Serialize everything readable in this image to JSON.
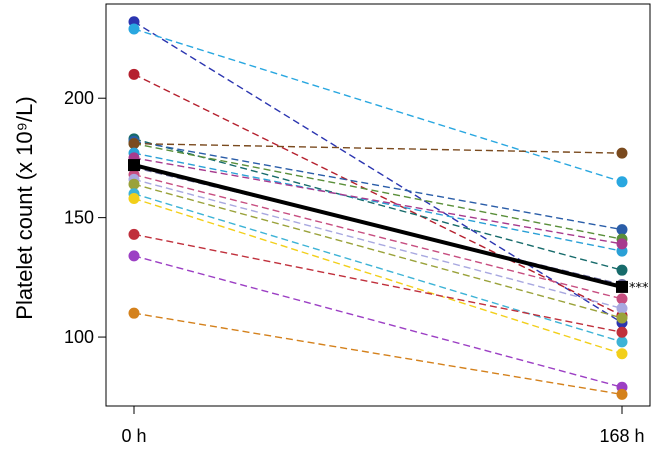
{
  "chart_data": {
    "type": "line",
    "x": [
      "0 h",
      "168 h"
    ],
    "ylabel": "Platelet count (x 10⁹/L)",
    "ylim": [
      77,
      234
    ],
    "yticks": [
      100,
      150,
      200
    ],
    "grid": false,
    "legend": "none",
    "series": [
      {
        "color": "#2b35b0",
        "values": [
          232,
          106
        ]
      },
      {
        "color": "#29a7e0",
        "values": [
          229,
          165
        ]
      },
      {
        "color": "#b5202e",
        "values": [
          210,
          109
        ]
      },
      {
        "color": "#176b6b",
        "values": [
          183,
          128
        ]
      },
      {
        "color": "#2a5da8",
        "values": [
          182,
          145
        ]
      },
      {
        "color": "#5a8f3a",
        "values": [
          181,
          141
        ]
      },
      {
        "color": "#7a4a1e",
        "values": [
          181,
          177
        ]
      },
      {
        "color": "#2aa0d6",
        "values": [
          177,
          136
        ]
      },
      {
        "color": "#a73a8d",
        "values": [
          175,
          139
        ]
      },
      {
        "color": "#6d6da0",
        "values": [
          171,
          122
        ]
      },
      {
        "color": "#c74e80",
        "values": [
          168,
          116
        ]
      },
      {
        "color": "#a8a8e0",
        "values": [
          166,
          112
        ]
      },
      {
        "color": "#9aa23a",
        "values": [
          164,
          108
        ]
      },
      {
        "color": "#3db3d6",
        "values": [
          160,
          98
        ]
      },
      {
        "color": "#f2cf1a",
        "values": [
          158,
          93
        ]
      },
      {
        "color": "#c0303c",
        "values": [
          143,
          102
        ]
      },
      {
        "color": "#9c3fc4",
        "values": [
          134,
          79
        ]
      },
      {
        "color": "#d4811c",
        "values": [
          110,
          76
        ]
      }
    ],
    "mean": {
      "color": "#000000",
      "values": [
        172,
        121
      ],
      "annotation": "***"
    }
  }
}
